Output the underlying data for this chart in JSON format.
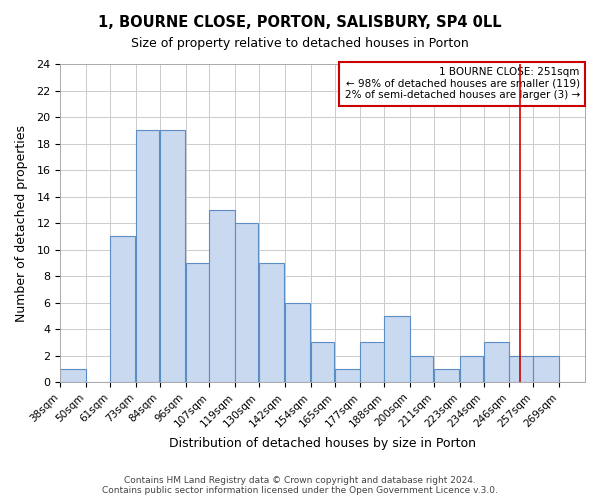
{
  "title": "1, BOURNE CLOSE, PORTON, SALISBURY, SP4 0LL",
  "subtitle": "Size of property relative to detached houses in Porton",
  "xlabel": "Distribution of detached houses by size in Porton",
  "ylabel": "Number of detached properties",
  "footer_lines": [
    "Contains HM Land Registry data © Crown copyright and database right 2024.",
    "Contains public sector information licensed under the Open Government Licence v.3.0."
  ],
  "bin_labels": [
    "38sqm",
    "50sqm",
    "61sqm",
    "73sqm",
    "84sqm",
    "96sqm",
    "107sqm",
    "119sqm",
    "130sqm",
    "142sqm",
    "154sqm",
    "165sqm",
    "177sqm",
    "188sqm",
    "200sqm",
    "211sqm",
    "223sqm",
    "234sqm",
    "246sqm",
    "257sqm",
    "269sqm"
  ],
  "bar_heights": [
    1,
    0,
    11,
    19,
    19,
    9,
    13,
    12,
    9,
    6,
    3,
    1,
    3,
    5,
    2,
    1,
    2,
    3,
    2,
    2,
    0
  ],
  "bar_color": "#c8d9f0",
  "bar_edge_color": "#5b8ec4",
  "ylim": [
    0,
    24
  ],
  "yticks": [
    0,
    2,
    4,
    6,
    8,
    10,
    12,
    14,
    16,
    18,
    20,
    22,
    24
  ],
  "property_line_x": 251,
  "bin_edges": [
    38,
    50,
    61,
    73,
    84,
    96,
    107,
    119,
    130,
    142,
    154,
    165,
    177,
    188,
    200,
    211,
    223,
    234,
    246,
    257,
    269,
    281
  ],
  "annotation_title": "1 BOURNE CLOSE: 251sqm",
  "annotation_line1": "← 98% of detached houses are smaller (119)",
  "annotation_line2": "2% of semi-detached houses are larger (3) →",
  "line_color": "#cc0000",
  "grid_color": "#cccccc",
  "background_color": "#ffffff"
}
